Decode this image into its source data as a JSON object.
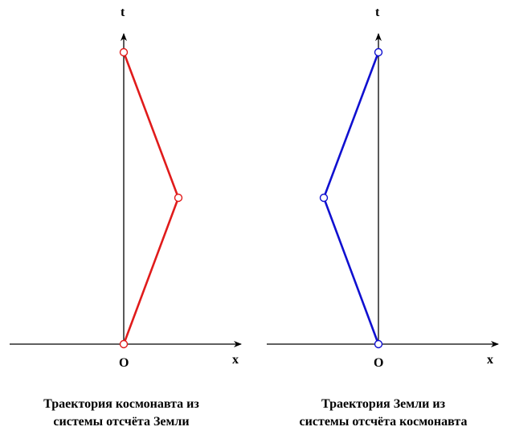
{
  "left_diagram": {
    "axis_t_label": "t",
    "axis_x_label": "x",
    "origin_label": "O",
    "caption_line1": "Траектория космонавта из",
    "caption_line2": "системы отсчёта Земли",
    "line_color": "#e01b1b"
  },
  "right_diagram": {
    "axis_t_label": "t",
    "axis_x_label": "x",
    "origin_label": "O",
    "caption_line1": "Траектория Земли из",
    "caption_line2": "системы отсчёта космонавта",
    "line_color": "#1010d0"
  }
}
